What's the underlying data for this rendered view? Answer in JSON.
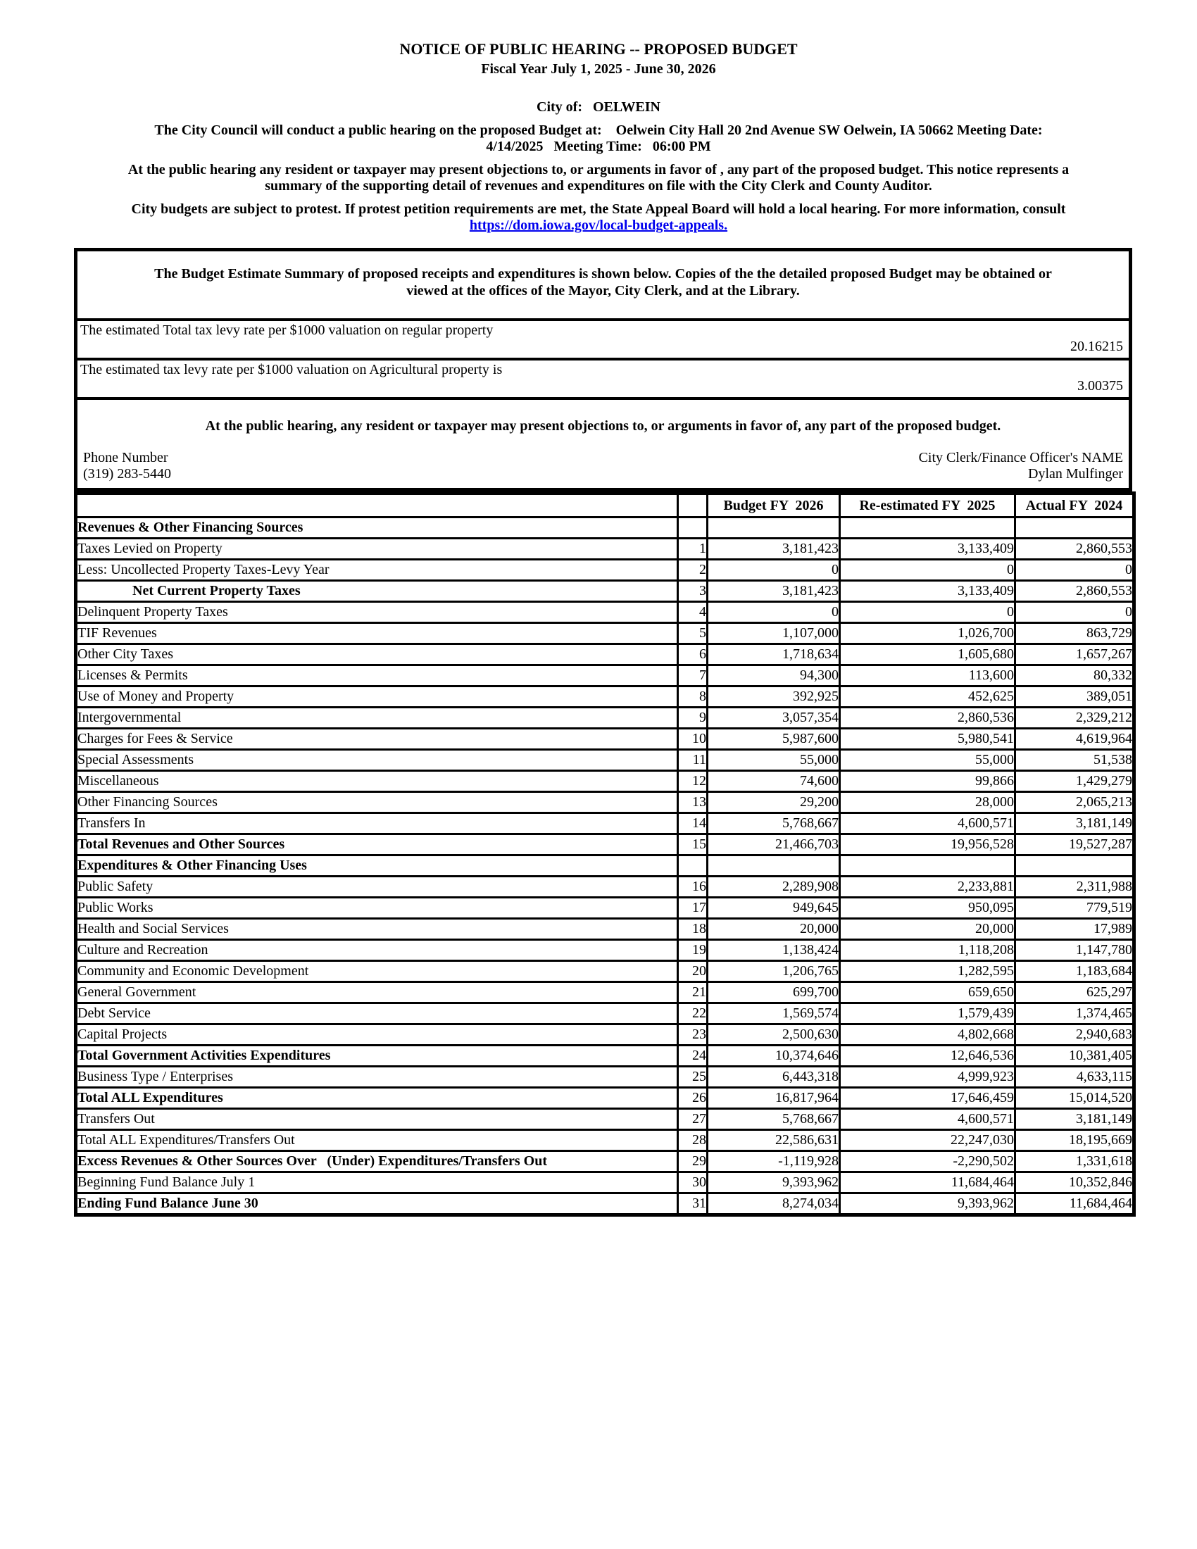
{
  "colors": {
    "link": "#0000EE",
    "border": "#000000",
    "text": "#000000",
    "background": "#FFFFFF"
  },
  "page": {
    "title_line1": "NOTICE OF PUBLIC HEARING -- PROPOSED BUDGET",
    "title_line2": "Fiscal Year July 1, 2025 - June 30, 2026",
    "city_line": "City of:   OELWEIN",
    "council_lines": [
      "The City Council will conduct a public hearing on the proposed Budget at:    Oelwein City Hall 20 2nd Avenue SW Oelwein, IA 50662 Meeting Date:",
      "4/14/2025   Meeting Time:   06:00 PM"
    ],
    "objection_lines": [
      "At the public hearing any resident or taxpayer may present objections to, or arguments in favor of , any part of the proposed budget. This notice represents a",
      "summary of the supporting detail of revenues and expenditures on file with the City Clerk and County Auditor."
    ],
    "protest_line": "City budgets are subject to protest. If protest petition requirements are met, the State Appeal Board will hold a local hearing. For more information, consult",
    "protest_link": "https://dom.iowa.gov/local-budget-appeals."
  },
  "summary_box": {
    "summary_lines": [
      "The Budget Estimate Summary of proposed receipts and expenditures is shown below. Copies of the the detailed proposed Budget may be obtained or",
      "viewed at the offices of the Mayor, City Clerk, and at the Library."
    ],
    "levy_regular_label": "The estimated Total tax levy rate per $1000 valuation on regular property",
    "levy_regular_value": "20.16215",
    "levy_ag_label": "The estimated tax levy rate per $1000 valuation on Agricultural property is",
    "levy_ag_value": "3.00375",
    "hearing_text": "At the public hearing, any resident or taxpayer may present objections to, or arguments in favor of, any part of the proposed budget.",
    "phone_label": "Phone Number",
    "phone_value": "(319) 283-5440",
    "clerk_label": "City Clerk/Finance Officer's NAME",
    "clerk_value": "Dylan Mulfinger"
  },
  "table": {
    "columns": [
      "",
      "",
      "Budget FY  2026",
      "Re-estimated FY  2025",
      "Actual FY  2024"
    ],
    "rows": [
      {
        "label": "Revenues & Other Financing Sources",
        "num": "",
        "values": [
          "",
          "",
          ""
        ],
        "style": "section"
      },
      {
        "label": "Taxes Levied on Property",
        "num": "1",
        "values": [
          "3,181,423",
          "3,133,409",
          "2,860,553"
        ],
        "style": ""
      },
      {
        "label": "Less: Uncollected Property Taxes-Levy Year",
        "num": "2",
        "values": [
          "0",
          "0",
          "0"
        ],
        "style": ""
      },
      {
        "label": "Net Current Property Taxes",
        "num": "3",
        "values": [
          "3,181,423",
          "3,133,409",
          "2,860,553"
        ],
        "style": "bold indent"
      },
      {
        "label": "Delinquent Property Taxes",
        "num": "4",
        "values": [
          "0",
          "0",
          "0"
        ],
        "style": ""
      },
      {
        "label": "TIF Revenues",
        "num": "5",
        "values": [
          "1,107,000",
          "1,026,700",
          "863,729"
        ],
        "style": ""
      },
      {
        "label": "Other City Taxes",
        "num": "6",
        "values": [
          "1,718,634",
          "1,605,680",
          "1,657,267"
        ],
        "style": ""
      },
      {
        "label": "Licenses & Permits",
        "num": "7",
        "values": [
          "94,300",
          "113,600",
          "80,332"
        ],
        "style": ""
      },
      {
        "label": "Use of Money and Property",
        "num": "8",
        "values": [
          "392,925",
          "452,625",
          "389,051"
        ],
        "style": ""
      },
      {
        "label": "Intergovernmental",
        "num": "9",
        "values": [
          "3,057,354",
          "2,860,536",
          "2,329,212"
        ],
        "style": ""
      },
      {
        "label": "Charges for Fees & Service",
        "num": "10",
        "values": [
          "5,987,600",
          "5,980,541",
          "4,619,964"
        ],
        "style": ""
      },
      {
        "label": "Special Assessments",
        "num": "11",
        "values": [
          "55,000",
          "55,000",
          "51,538"
        ],
        "style": ""
      },
      {
        "label": "Miscellaneous",
        "num": "12",
        "values": [
          "74,600",
          "99,866",
          "1,429,279"
        ],
        "style": ""
      },
      {
        "label": "Other Financing Sources",
        "num": "13",
        "values": [
          "29,200",
          "28,000",
          "2,065,213"
        ],
        "style": ""
      },
      {
        "label": "Transfers In",
        "num": "14",
        "values": [
          "5,768,667",
          "4,600,571",
          "3,181,149"
        ],
        "style": ""
      },
      {
        "label": "Total Revenues and Other Sources",
        "num": "15",
        "values": [
          "21,466,703",
          "19,956,528",
          "19,527,287"
        ],
        "style": "bold"
      },
      {
        "label": "Expenditures & Other Financing Uses",
        "num": "",
        "values": [
          "",
          "",
          ""
        ],
        "style": "section"
      },
      {
        "label": "Public Safety",
        "num": "16",
        "values": [
          "2,289,908",
          "2,233,881",
          "2,311,988"
        ],
        "style": ""
      },
      {
        "label": "Public Works",
        "num": "17",
        "values": [
          "949,645",
          "950,095",
          "779,519"
        ],
        "style": ""
      },
      {
        "label": "Health and Social Services",
        "num": "18",
        "values": [
          "20,000",
          "20,000",
          "17,989"
        ],
        "style": ""
      },
      {
        "label": "Culture and Recreation",
        "num": "19",
        "values": [
          "1,138,424",
          "1,118,208",
          "1,147,780"
        ],
        "style": ""
      },
      {
        "label": "Community and Economic Development",
        "num": "20",
        "values": [
          "1,206,765",
          "1,282,595",
          "1,183,684"
        ],
        "style": ""
      },
      {
        "label": "General Government",
        "num": "21",
        "values": [
          "699,700",
          "659,650",
          "625,297"
        ],
        "style": ""
      },
      {
        "label": "Debt Service",
        "num": "22",
        "values": [
          "1,569,574",
          "1,579,439",
          "1,374,465"
        ],
        "style": ""
      },
      {
        "label": "Capital Projects",
        "num": "23",
        "values": [
          "2,500,630",
          "4,802,668",
          "2,940,683"
        ],
        "style": ""
      },
      {
        "label": "Total Government Activities Expenditures",
        "num": "24",
        "values": [
          "10,374,646",
          "12,646,536",
          "10,381,405"
        ],
        "style": "bold"
      },
      {
        "label": "Business Type / Enterprises",
        "num": "25",
        "values": [
          "6,443,318",
          "4,999,923",
          "4,633,115"
        ],
        "style": ""
      },
      {
        "label": "Total ALL Expenditures",
        "num": "26",
        "values": [
          "16,817,964",
          "17,646,459",
          "15,014,520"
        ],
        "style": "bold"
      },
      {
        "label": "Transfers Out",
        "num": "27",
        "values": [
          "5,768,667",
          "4,600,571",
          "3,181,149"
        ],
        "style": ""
      },
      {
        "label": "Total ALL Expenditures/Transfers Out",
        "num": "28",
        "values": [
          "22,586,631",
          "22,247,030",
          "18,195,669"
        ],
        "style": ""
      },
      {
        "label": "Excess Revenues & Other Sources Over   (Under) Expenditures/Transfers Out",
        "num": "29",
        "values": [
          "-1,119,928",
          "-2,290,502",
          "1,331,618"
        ],
        "style": "bold"
      },
      {
        "label": "Beginning Fund Balance July 1",
        "num": "30",
        "values": [
          "9,393,962",
          "11,684,464",
          "10,352,846"
        ],
        "style": ""
      },
      {
        "label": "Ending Fund Balance June 30",
        "num": "31",
        "values": [
          "8,274,034",
          "9,393,962",
          "11,684,464"
        ],
        "style": "bold"
      }
    ]
  }
}
